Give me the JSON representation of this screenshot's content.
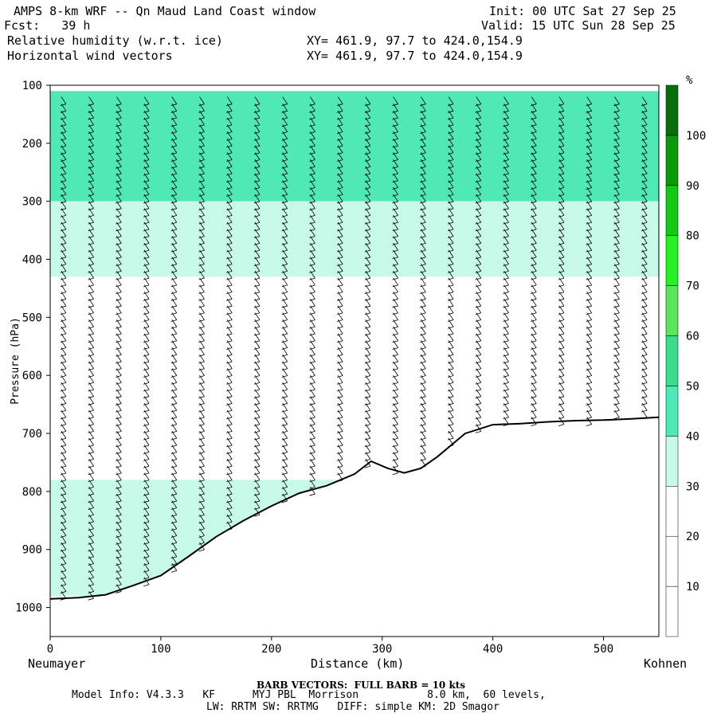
{
  "header": {
    "title": "AMPS 8-km WRF -- Qn Maud Land Coast window",
    "fcst": "Fcst:   39 h",
    "init": "Init: 00 UTC Sat 27 Sep 25",
    "valid": "Valid: 15 UTC Sun 28 Sep 25",
    "field1": "Relative humidity (w.r.t. ice)",
    "field2": "Horizontal wind vectors",
    "xy1": "XY= 461.9, 97.7 to 424.0,154.9",
    "xy2": "XY= 461.9, 97.7 to 424.0,154.9"
  },
  "footer": {
    "barb": "BARB VECTORS:  FULL BARB = 10 kts",
    "model_line1": "Model Info: V4.3.3   KF      MYJ PBL  Morrison           8.0 km,  60 levels,",
    "model_line2": "LW: RRTM SW: RRTMG   DIFF: simple KM: 2D Smagor"
  },
  "chart_data": {
    "type": "heatmap",
    "title": "Relative humidity (w.r.t. ice)",
    "xlabel": "Distance (km)",
    "ylabel": "Pressure (hPa)",
    "x_left_label": "Neumayer",
    "x_right_label": "Kohnen",
    "xlim": [
      0,
      550
    ],
    "ylim": [
      1050,
      100
    ],
    "x_ticks": [
      0,
      100,
      200,
      300,
      400,
      500
    ],
    "x_tick_labels": [
      "0",
      "100",
      "200",
      "300",
      "400",
      "500"
    ],
    "y_ticks": [
      100,
      200,
      300,
      400,
      500,
      600,
      700,
      800,
      900,
      1000
    ],
    "y_tick_labels": [
      "100",
      "200",
      "300",
      "400",
      "500",
      "600",
      "700",
      "800",
      "900",
      "1000"
    ],
    "colorbar": {
      "unit": "%",
      "levels": [
        0,
        10,
        20,
        30,
        40,
        50,
        60,
        70,
        80,
        90,
        100,
        110
      ],
      "labels": [
        "10",
        "20",
        "30",
        "40",
        "50",
        "60",
        "70",
        "80",
        "90",
        "100"
      ],
      "colors": [
        "#ffffff",
        "#ffffff",
        "#ffffff",
        "#c8faea",
        "#50e8b4",
        "#3cdc8c",
        "#5ae65a",
        "#28f028",
        "#14c814",
        "#0a9a0a",
        "#086e0a",
        "#3c5a14"
      ]
    },
    "terrain": {
      "distance_km": [
        0,
        25,
        50,
        75,
        100,
        125,
        150,
        175,
        200,
        225,
        250,
        275,
        290,
        305,
        320,
        335,
        350,
        375,
        400,
        425,
        450,
        475,
        500,
        525,
        550
      ],
      "pressure_hPa": [
        985,
        983,
        978,
        962,
        945,
        912,
        878,
        850,
        825,
        803,
        790,
        770,
        748,
        760,
        768,
        760,
        740,
        700,
        685,
        683,
        680,
        678,
        677,
        675,
        672
      ]
    },
    "rh_field_description_free": false,
    "rh_bands": [
      {
        "p_top": 110,
        "p_bottom": 300,
        "rh": 40
      },
      {
        "p_top": 300,
        "p_bottom": 430,
        "rh": 32
      },
      {
        "p_top": 780,
        "p_bottom": 980,
        "rh": 35
      }
    ],
    "wind_barbs": {
      "units": "kts",
      "full_barb_kts": 10,
      "column_distance_km": [
        10,
        35,
        60,
        85,
        110,
        135,
        160,
        185,
        210,
        235,
        260,
        285,
        310,
        335,
        360,
        385,
        410,
        435,
        460,
        485,
        510,
        535
      ]
    }
  }
}
